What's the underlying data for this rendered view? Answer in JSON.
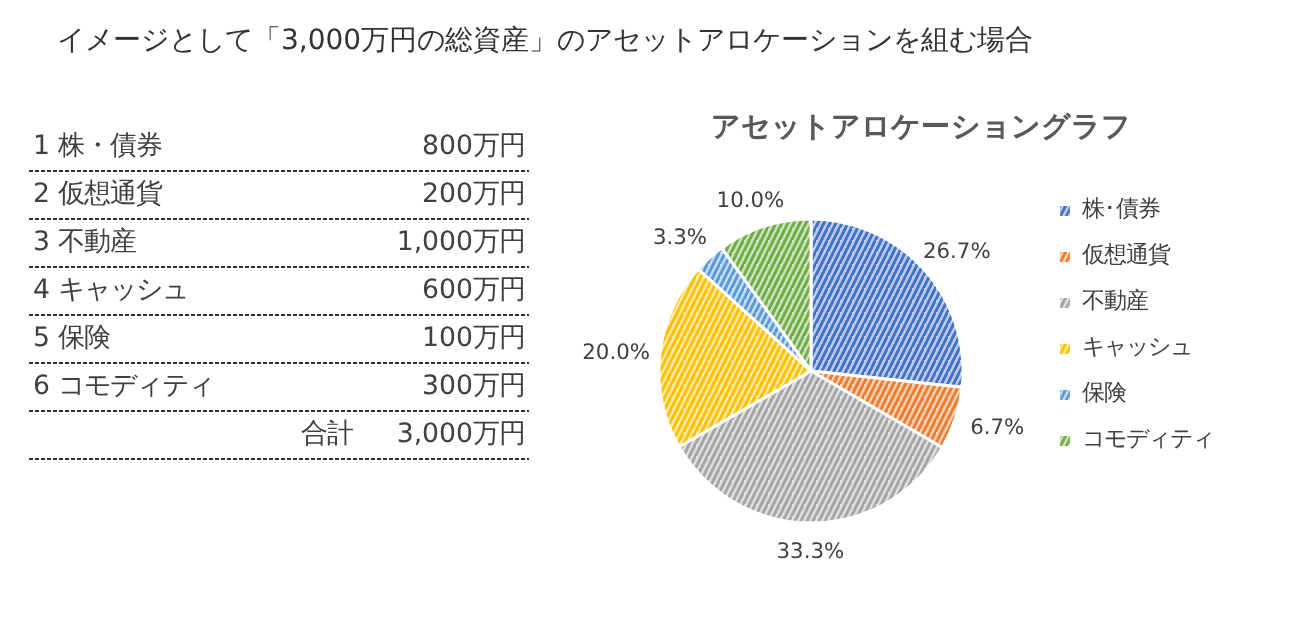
{
  "chart_data": {
    "type": "pie",
    "title": "アセットアロケーショングラフ",
    "categories": [
      "株･債券",
      "仮想通貨",
      "不動産",
      "キャッシュ",
      "保険",
      "コモディティ"
    ],
    "values": [
      26.7,
      6.7,
      33.3,
      20.0,
      3.3,
      10.0
    ],
    "value_labels": [
      "26.7%",
      "6.7%",
      "33.3%",
      "20.0%",
      "3.3%",
      "10.0%"
    ],
    "colors": [
      "#4472c4",
      "#ed7d31",
      "#a5a5a5",
      "#ffc000",
      "#5b9bd5",
      "#70ad47"
    ],
    "legend": "right",
    "annotations": [
      "イメージとして「3,000万円の総資産」のアセットアロケーションを組む場合",
      "1 株・債券",
      "800万円",
      "2 仮想通貨",
      "200万円",
      "3 不動産",
      "1,000万円",
      "4 キャッシュ",
      "600万円",
      "5 保険",
      "100万円",
      "6 コモディティ",
      "300万円",
      "合計",
      "3,000万円"
    ]
  }
}
